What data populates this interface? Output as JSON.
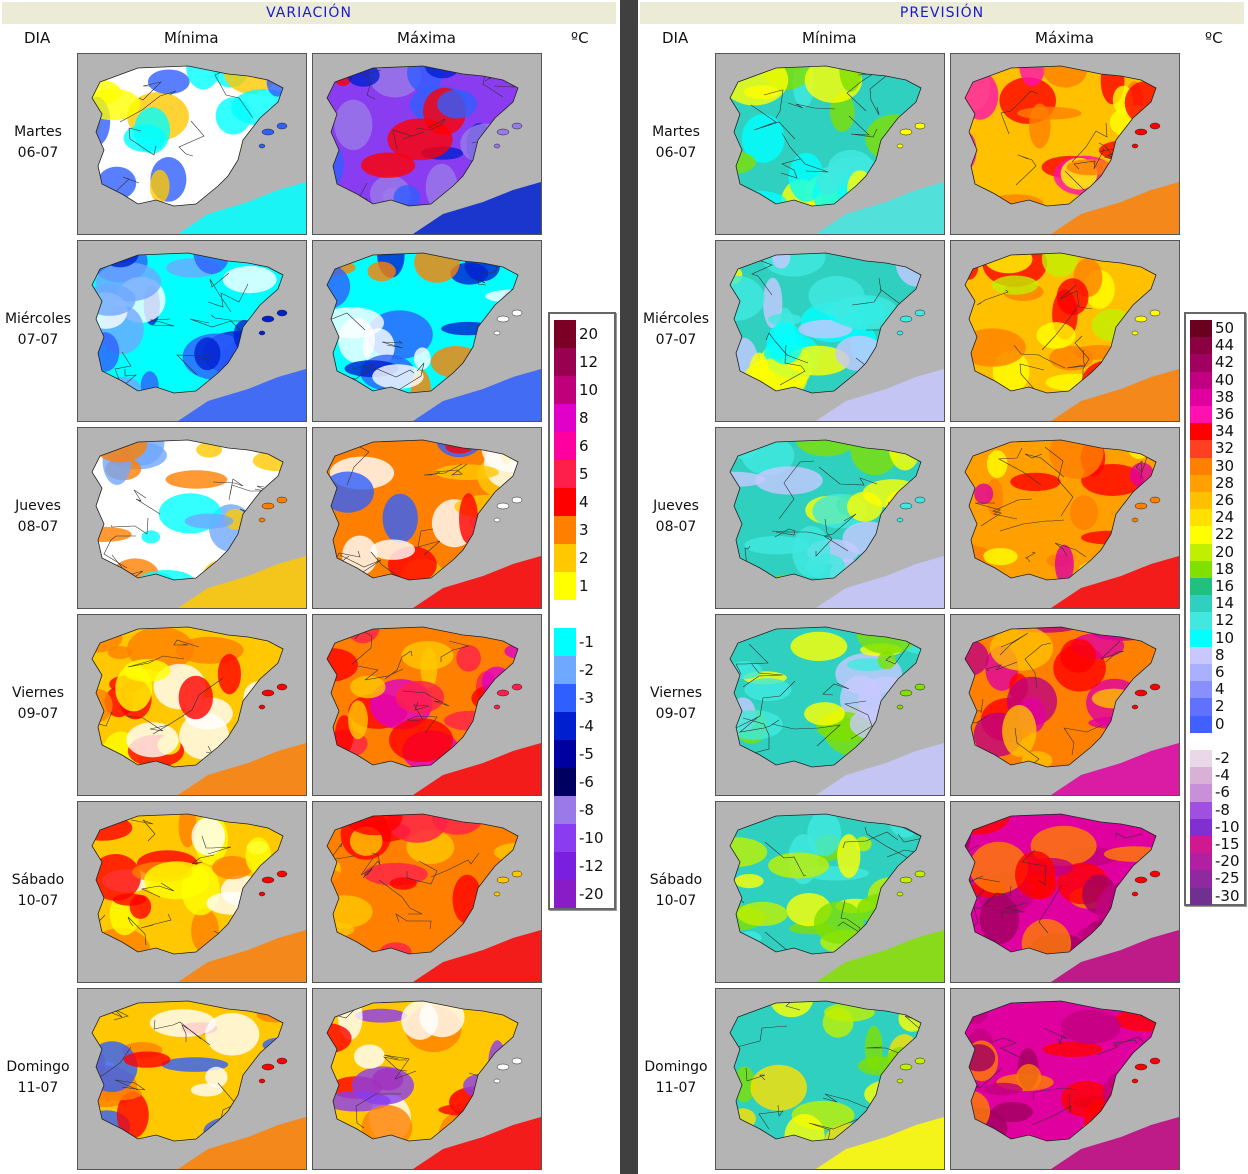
{
  "variacion": {
    "title": "VARIACIÓN",
    "col_dia": "DIA",
    "col_min": "Mínima",
    "col_max": "Máxima",
    "unit": "ºC",
    "legend": [
      {
        "label": "20",
        "color": "#7a0025"
      },
      {
        "label": "12",
        "color": "#9a0050"
      },
      {
        "label": "10",
        "color": "#c0007a"
      },
      {
        "label": "8",
        "color": "#e000c8"
      },
      {
        "label": "6",
        "color": "#ff00a0"
      },
      {
        "label": "5",
        "color": "#ff1f4a"
      },
      {
        "label": "4",
        "color": "#ff0000"
      },
      {
        "label": "3",
        "color": "#ff8000"
      },
      {
        "label": "2",
        "color": "#ffc800"
      },
      {
        "label": "1",
        "color": "#ffff00"
      },
      {
        "label": "",
        "color": "#ffffff"
      },
      {
        "label": "-1",
        "color": "#00ffff"
      },
      {
        "label": "-2",
        "color": "#6fa8ff"
      },
      {
        "label": "-3",
        "color": "#2f5fff"
      },
      {
        "label": "-4",
        "color": "#0020d0"
      },
      {
        "label": "-5",
        "color": "#0000a0"
      },
      {
        "label": "-6",
        "color": "#000060"
      },
      {
        "label": "-8",
        "color": "#9a7ae8"
      },
      {
        "label": "-10",
        "color": "#8a3cf0"
      },
      {
        "label": "-12",
        "color": "#7a1ee0"
      },
      {
        "label": "-20",
        "color": "#8a1cc8"
      }
    ]
  },
  "prevision": {
    "title": "PREVISIÓN",
    "col_dia": "DIA",
    "col_min": "Mínima",
    "col_max": "Máxima",
    "unit": "ºC",
    "legend": [
      {
        "label": "50",
        "color": "#6a0020"
      },
      {
        "label": "44",
        "color": "#8a0040"
      },
      {
        "label": "42",
        "color": "#a00060"
      },
      {
        "label": "40",
        "color": "#c00080"
      },
      {
        "label": "38",
        "color": "#e000a0"
      },
      {
        "label": "36",
        "color": "#ff10b0"
      },
      {
        "label": "34",
        "color": "#ff0000"
      },
      {
        "label": "32",
        "color": "#ff4020"
      },
      {
        "label": "30",
        "color": "#ff8000"
      },
      {
        "label": "28",
        "color": "#ffa000"
      },
      {
        "label": "26",
        "color": "#ffc000"
      },
      {
        "label": "24",
        "color": "#ffe000"
      },
      {
        "label": "22",
        "color": "#ffff00"
      },
      {
        "label": "20",
        "color": "#c0f000"
      },
      {
        "label": "18",
        "color": "#80e000"
      },
      {
        "label": "16",
        "color": "#20c080"
      },
      {
        "label": "14",
        "color": "#30d0c0"
      },
      {
        "label": "12",
        "color": "#40e8e0"
      },
      {
        "label": "10",
        "color": "#00ffff"
      },
      {
        "label": "8",
        "color": "#c8c8ff"
      },
      {
        "label": "6",
        "color": "#a8b0ff"
      },
      {
        "label": "4",
        "color": "#8890ff"
      },
      {
        "label": "2",
        "color": "#6070ff"
      },
      {
        "label": "0",
        "color": "#4060ff"
      },
      {
        "label": "",
        "color": "#ffffff"
      },
      {
        "label": "-2",
        "color": "#e8d8e8"
      },
      {
        "label": "-4",
        "color": "#d8b0d8"
      },
      {
        "label": "-6",
        "color": "#c890d8"
      },
      {
        "label": "-8",
        "color": "#a050e0"
      },
      {
        "label": "-10",
        "color": "#8030d0"
      },
      {
        "label": "-15",
        "color": "#d01890"
      },
      {
        "label": "-20",
        "color": "#b020a0"
      },
      {
        "label": "-25",
        "color": "#9028a0"
      },
      {
        "label": "-30",
        "color": "#703090"
      }
    ]
  },
  "days": [
    {
      "name": "Martes",
      "date": "06-07"
    },
    {
      "name": "Miércoles",
      "date": "07-07"
    },
    {
      "name": "Jueves",
      "date": "08-07"
    },
    {
      "name": "Viernes",
      "date": "09-07"
    },
    {
      "name": "Sábado",
      "date": "10-07"
    },
    {
      "name": "Domingo",
      "date": "11-07"
    }
  ],
  "maps": {
    "var_min": [
      {
        "base": "#ffffff",
        "spots": [
          "#00ffff",
          "#2f5fff",
          "#ffc800",
          "#ffff00"
        ]
      },
      {
        "base": "#00ffff",
        "spots": [
          "#2f5fff",
          "#0020d0",
          "#ffffff",
          "#6fa8ff"
        ]
      },
      {
        "base": "#ffffff",
        "spots": [
          "#ffc800",
          "#ff8000",
          "#6fa8ff",
          "#00ffff"
        ]
      },
      {
        "base": "#ffc800",
        "spots": [
          "#ff8000",
          "#ff0000",
          "#ffff00",
          "#ffffff"
        ]
      },
      {
        "base": "#ffc800",
        "spots": [
          "#ff8000",
          "#ff0000",
          "#ffff00",
          "#ffffff"
        ]
      },
      {
        "base": "#ffc800",
        "spots": [
          "#ff8000",
          "#ff0000",
          "#ffffff",
          "#2f5fff"
        ]
      }
    ],
    "var_max": [
      {
        "base": "#8a3cf0",
        "spots": [
          "#0020d0",
          "#9a7ae8",
          "#2f5fff",
          "#ff0000"
        ]
      },
      {
        "base": "#00ffff",
        "spots": [
          "#2f5fff",
          "#ffffff",
          "#ff8000",
          "#0020d0"
        ]
      },
      {
        "base": "#ff8000",
        "spots": [
          "#ff0000",
          "#ffffff",
          "#ffc800",
          "#2f5fff"
        ]
      },
      {
        "base": "#ff8000",
        "spots": [
          "#ff0000",
          "#ff1f4a",
          "#e000c8",
          "#ffc800"
        ]
      },
      {
        "base": "#ff8000",
        "spots": [
          "#ff0000",
          "#ffc800",
          "#ff8000",
          "#ff1f4a"
        ]
      },
      {
        "base": "#ffc800",
        "spots": [
          "#ff0000",
          "#ffffff",
          "#8a3cf0",
          "#ff8000"
        ]
      }
    ],
    "pre_min": [
      {
        "base": "#30d0c0",
        "spots": [
          "#40e8e0",
          "#ffff00",
          "#80e000",
          "#00ffff"
        ]
      },
      {
        "base": "#30d0c0",
        "spots": [
          "#c8c8ff",
          "#40e8e0",
          "#ffff00",
          "#00ffff"
        ]
      },
      {
        "base": "#30d0c0",
        "spots": [
          "#c8c8ff",
          "#40e8e0",
          "#80e000",
          "#ffff00"
        ]
      },
      {
        "base": "#30d0c0",
        "spots": [
          "#c8c8ff",
          "#80e000",
          "#ffff00",
          "#40e8e0"
        ]
      },
      {
        "base": "#30d0c0",
        "spots": [
          "#80e000",
          "#c0f000",
          "#ffff00",
          "#40e8e0"
        ]
      },
      {
        "base": "#30d0c0",
        "spots": [
          "#ffff00",
          "#c0f000",
          "#80e000",
          "#ffe000"
        ]
      }
    ],
    "pre_max": [
      {
        "base": "#ffc000",
        "spots": [
          "#ff8000",
          "#ff0000",
          "#ffff00",
          "#ff10b0"
        ]
      },
      {
        "base": "#ffc000",
        "spots": [
          "#ff8000",
          "#ffff00",
          "#ff0000",
          "#c0f000"
        ]
      },
      {
        "base": "#ffa000",
        "spots": [
          "#ff0000",
          "#ff8000",
          "#ffff00",
          "#e000a0"
        ]
      },
      {
        "base": "#ff8000",
        "spots": [
          "#e000a0",
          "#ff0000",
          "#c00080",
          "#ffc000"
        ]
      },
      {
        "base": "#e000a0",
        "spots": [
          "#c00080",
          "#ff0000",
          "#ff8000",
          "#a00060"
        ]
      },
      {
        "base": "#e000a0",
        "spots": [
          "#c00080",
          "#ff0000",
          "#ff8000",
          "#a00060"
        ]
      }
    ]
  }
}
